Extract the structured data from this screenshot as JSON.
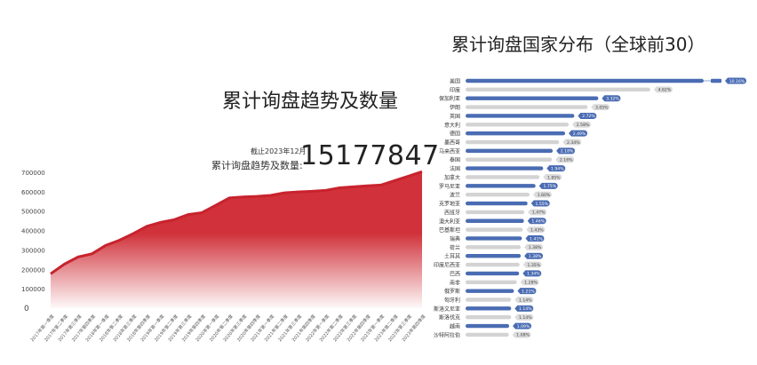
{
  "chart_data": [
    {
      "type": "area",
      "title": "累计询盘趋势及数量",
      "as_of": "截止2023年12月",
      "total_label": "累计询盘趋势及数量:",
      "total_value": "15177847",
      "ylim": [
        0,
        700000
      ],
      "y_ticks": [
        "0",
        "100000",
        "200000",
        "300000",
        "400000",
        "500000",
        "600000",
        "700000"
      ],
      "grid": false,
      "color": "#d0313a",
      "categories": [
        "2017年第一季度",
        "2017年第二季度",
        "2017年第三季度",
        "2017年第四季度",
        "2018年第一季度",
        "2018年第二季度",
        "2018年第三季度",
        "2018年第四季度",
        "2019年第一季度",
        "2019年第二季度",
        "2019年第三季度",
        "2019年第四季度",
        "2020年第一季度",
        "2020年第二季度",
        "2020年第三季度",
        "2020年第四季度",
        "2021年第一季度",
        "2021年第二季度",
        "2021年第三季度",
        "2021年第四季度",
        "2022年第一季度",
        "2022年第二季度",
        "2022年第三季度",
        "2022年第四季度",
        "2023年第一季度",
        "2023年第二季度",
        "2023年第三季度",
        "2023年第四季度"
      ],
      "values": [
        177000,
        227000,
        264000,
        280000,
        323000,
        350000,
        384000,
        422000,
        442000,
        456000,
        482000,
        492000,
        530000,
        568000,
        573000,
        576000,
        581000,
        594000,
        599000,
        602000,
        607000,
        620000,
        625000,
        630000,
        634000,
        657000,
        680000,
        703000
      ]
    },
    {
      "type": "bar",
      "orientation": "horizontal",
      "title": "累计询盘国家分布（全球前30）",
      "colors": {
        "odd": "#4a6cb3",
        "even": "#d3d3d3"
      },
      "categories": [
        "美国",
        "印度",
        "保加利亚",
        "伊朗",
        "英国",
        "意大利",
        "德国",
        "墨西哥",
        "马来西亚",
        "泰国",
        "法国",
        "加拿大",
        "罗马尼亚",
        "波兰",
        "克罗地亚",
        "西班牙",
        "澳大利亚",
        "巴基斯坦",
        "瑞典",
        "荷兰",
        "土耳其",
        "印度尼西亚",
        "巴西",
        "南非",
        "俄罗斯",
        "匈牙利",
        "斯洛文尼亚",
        "斯洛伐克",
        "越南",
        "沙特阿拉伯"
      ],
      "values": [
        10.16,
        4.62,
        3.32,
        3.05,
        2.72,
        2.58,
        2.49,
        2.34,
        2.18,
        2.16,
        1.94,
        1.85,
        1.75,
        1.6,
        1.55,
        1.47,
        1.46,
        1.43,
        1.41,
        1.38,
        1.38,
        1.35,
        1.34,
        1.28,
        1.21,
        1.14,
        1.14,
        1.14,
        1.09,
        1.08
      ],
      "labels": [
        "10.16%",
        "4.62%",
        "3.32%",
        "3.05%",
        "2.72%",
        "2.58%",
        "2.49%",
        "2.34%",
        "2.18%",
        "2.16%",
        "1.94%",
        "1.85%",
        "1.75%",
        "1.60%",
        "1.55%",
        "1.47%",
        "1.46%",
        "1.43%",
        "1.41%",
        "1.38%",
        "1.38%",
        "1.35%",
        "1.34%",
        "1.28%",
        "1.21%",
        "1.14%",
        "1.14%",
        "1.14%",
        "1.09%",
        "1.08%"
      ],
      "axis_break": true
    }
  ]
}
